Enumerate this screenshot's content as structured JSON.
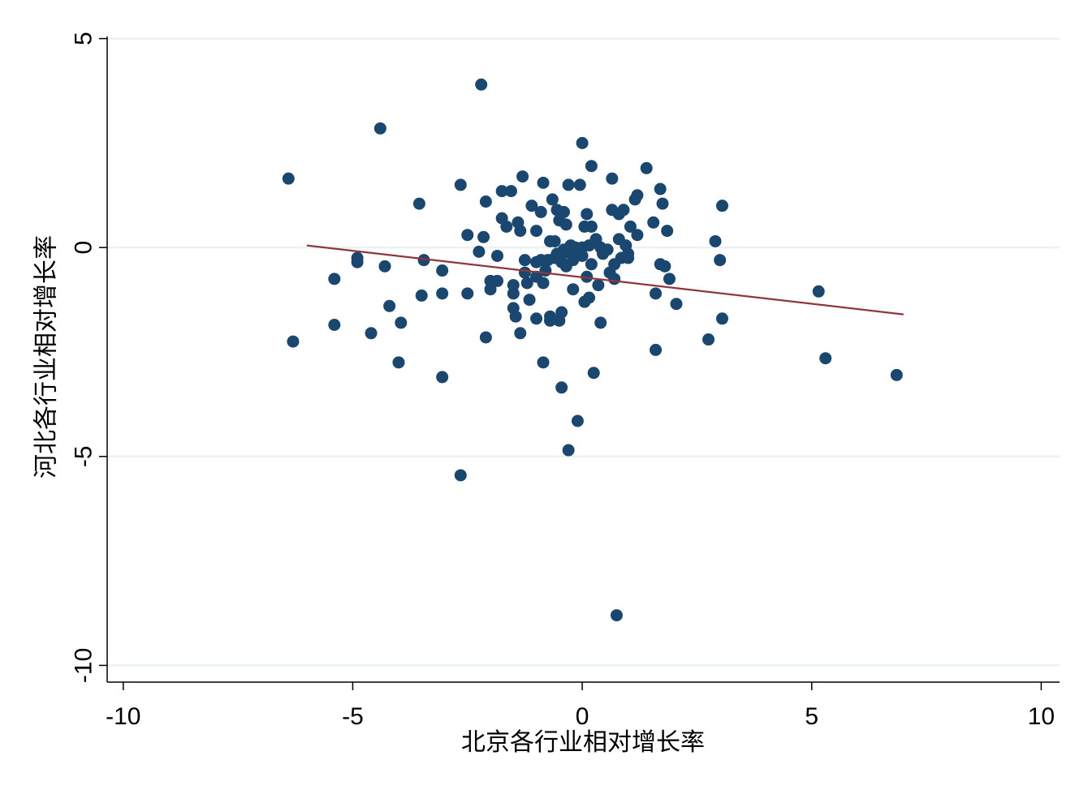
{
  "chart_data": {
    "type": "scatter",
    "title": "",
    "xlabel": "北京各行业相对增长率",
    "ylabel": "河北各行业相对增长率",
    "xlim": [
      -10.35,
      10.4
    ],
    "ylim": [
      -10.4,
      5.05
    ],
    "x_ticks": [
      -10,
      -5,
      0,
      5,
      10
    ],
    "y_ticks": [
      5,
      0,
      -5,
      -10
    ],
    "x_tick_labels": [
      "-10",
      "-5",
      "0",
      "5",
      "10"
    ],
    "y_tick_labels": [
      "5",
      "0",
      "-5",
      "-10"
    ],
    "grid": true,
    "legend": "none",
    "colors": {
      "points": "#1a476f",
      "fit_line": "#90353b",
      "grid": "#eaf2f3",
      "axis": "#000000"
    },
    "series": [
      {
        "type": "scatter",
        "points": [
          [
            -2.2,
            3.9
          ],
          [
            -4.4,
            2.85
          ],
          [
            -6.4,
            1.65
          ],
          [
            -6.3,
            -2.25
          ],
          [
            -5.4,
            -0.75
          ],
          [
            -5.4,
            -1.85
          ],
          [
            -4.9,
            -0.35
          ],
          [
            -4.9,
            -0.25
          ],
          [
            -4.6,
            -2.05
          ],
          [
            -4.3,
            -0.45
          ],
          [
            -4.2,
            -1.4
          ],
          [
            -4.0,
            -2.75
          ],
          [
            -3.95,
            -1.8
          ],
          [
            -3.55,
            1.05
          ],
          [
            -3.5,
            -1.15
          ],
          [
            -3.45,
            -0.3
          ],
          [
            -3.05,
            -0.55
          ],
          [
            -3.05,
            -1.1
          ],
          [
            -3.05,
            -3.1
          ],
          [
            -2.65,
            1.5
          ],
          [
            -2.65,
            -5.45
          ],
          [
            -2.5,
            0.3
          ],
          [
            -2.5,
            -1.1
          ],
          [
            -2.25,
            -0.1
          ],
          [
            -2.15,
            0.25
          ],
          [
            -2.1,
            1.1
          ],
          [
            -2.1,
            -2.15
          ],
          [
            -2.0,
            -0.8
          ],
          [
            -2.0,
            -1.0
          ],
          [
            -1.85,
            -0.2
          ],
          [
            -1.85,
            -0.8
          ],
          [
            -1.75,
            0.7
          ],
          [
            -1.75,
            1.35
          ],
          [
            -1.65,
            0.5
          ],
          [
            -1.55,
            1.35
          ],
          [
            -1.5,
            -0.9
          ],
          [
            -1.5,
            -1.1
          ],
          [
            -1.5,
            -1.45
          ],
          [
            -1.45,
            -1.65
          ],
          [
            -1.4,
            0.6
          ],
          [
            -1.35,
            0.4
          ],
          [
            -1.35,
            -2.05
          ],
          [
            -1.3,
            1.7
          ],
          [
            -1.25,
            -0.3
          ],
          [
            -1.25,
            -0.6
          ],
          [
            -1.2,
            -0.85
          ],
          [
            -1.15,
            -1.25
          ],
          [
            -1.1,
            1.0
          ],
          [
            -1.0,
            0.4
          ],
          [
            -1.0,
            -0.35
          ],
          [
            -1.0,
            -0.7
          ],
          [
            -1.0,
            -1.7
          ],
          [
            -0.9,
            0.85
          ],
          [
            -0.9,
            -0.3
          ],
          [
            -0.85,
            1.55
          ],
          [
            -0.85,
            -0.85
          ],
          [
            -0.85,
            -2.75
          ],
          [
            -0.8,
            -0.55
          ],
          [
            -0.75,
            -0.3
          ],
          [
            -0.7,
            0.15
          ],
          [
            -0.7,
            -1.65
          ],
          [
            -0.7,
            -1.75
          ],
          [
            -0.65,
            1.15
          ],
          [
            -0.6,
            0.15
          ],
          [
            -0.6,
            -0.25
          ],
          [
            -0.55,
            0.9
          ],
          [
            -0.5,
            0.65
          ],
          [
            -0.5,
            -1.75
          ],
          [
            -0.45,
            -0.35
          ],
          [
            -0.45,
            -1.55
          ],
          [
            -0.45,
            -3.35
          ],
          [
            -0.4,
            0.85
          ],
          [
            -0.4,
            -0.05
          ],
          [
            -0.35,
            0.55
          ],
          [
            -0.35,
            -0.45
          ],
          [
            -0.3,
            1.5
          ],
          [
            -0.3,
            -4.85
          ],
          [
            -0.25,
            -0.15
          ],
          [
            -0.2,
            -0.3
          ],
          [
            -0.2,
            -1.0
          ],
          [
            -0.15,
            0.0
          ],
          [
            -0.1,
            -4.15
          ],
          [
            -0.05,
            1.5
          ],
          [
            0.0,
            0.0
          ],
          [
            0.0,
            2.5
          ],
          [
            0.05,
            0.5
          ],
          [
            0.05,
            -1.3
          ],
          [
            0.1,
            0.8
          ],
          [
            0.1,
            -0.7
          ],
          [
            0.15,
            0.05
          ],
          [
            0.15,
            -1.2
          ],
          [
            0.2,
            0.5
          ],
          [
            0.2,
            -0.4
          ],
          [
            0.2,
            1.95
          ],
          [
            0.25,
            -3.0
          ],
          [
            0.3,
            0.2
          ],
          [
            0.35,
            -0.9
          ],
          [
            0.4,
            0.0
          ],
          [
            0.4,
            -1.8
          ],
          [
            0.6,
            -0.6
          ],
          [
            0.65,
            1.65
          ],
          [
            0.65,
            0.9
          ],
          [
            0.7,
            -0.75
          ],
          [
            0.75,
            -8.8
          ],
          [
            0.8,
            0.8
          ],
          [
            0.8,
            0.2
          ],
          [
            0.85,
            -0.25
          ],
          [
            0.9,
            0.9
          ],
          [
            0.95,
            0.05
          ],
          [
            1.0,
            -0.25
          ],
          [
            1.05,
            0.5
          ],
          [
            1.15,
            1.15
          ],
          [
            1.2,
            1.25
          ],
          [
            1.2,
            0.3
          ],
          [
            1.4,
            1.9
          ],
          [
            1.55,
            0.6
          ],
          [
            1.6,
            -1.1
          ],
          [
            1.6,
            -2.45
          ],
          [
            1.7,
            1.4
          ],
          [
            1.7,
            -0.4
          ],
          [
            1.75,
            1.05
          ],
          [
            1.8,
            -0.45
          ],
          [
            1.85,
            0.4
          ],
          [
            1.9,
            -0.75
          ],
          [
            2.05,
            -1.35
          ],
          [
            2.75,
            -2.2
          ],
          [
            2.9,
            0.15
          ],
          [
            3.0,
            -0.3
          ],
          [
            3.05,
            1.0
          ],
          [
            3.05,
            -1.7
          ],
          [
            5.15,
            -1.05
          ],
          [
            5.3,
            -2.65
          ],
          [
            6.85,
            -3.05
          ],
          [
            -0.55,
            -0.15
          ],
          [
            -0.35,
            -0.1
          ],
          [
            -0.25,
            0.05
          ],
          [
            0.0,
            -0.2
          ],
          [
            0.45,
            -0.15
          ],
          [
            0.55,
            -0.05
          ],
          [
            0.7,
            -0.4
          ],
          [
            1.0,
            -0.15
          ]
        ]
      },
      {
        "type": "line",
        "name": "",
        "x": [
          -6.0,
          7.0
        ],
        "y": [
          0.05,
          -1.6
        ]
      }
    ]
  }
}
